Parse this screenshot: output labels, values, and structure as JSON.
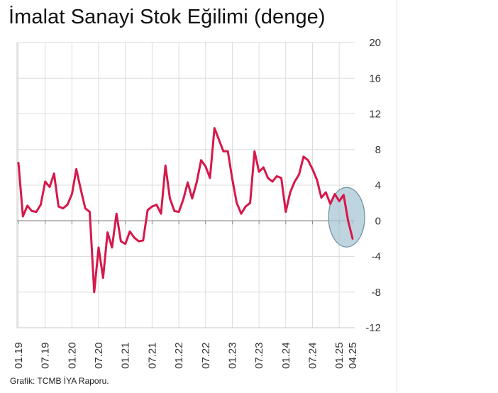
{
  "chart_data": {
    "type": "line",
    "title": "İmalat Sanayi Stok Eğilimi (denge)",
    "source": "Grafik: TCMB İYA Raporu.",
    "xlabel": "",
    "ylabel": "",
    "ylim": [
      -12,
      20
    ],
    "yticks": [
      20,
      16,
      12,
      8,
      4,
      0,
      -4,
      -8,
      -12
    ],
    "grid": true,
    "y_axis_side": "right",
    "xtick_labels": [
      "01.19",
      "07.19",
      "01.20",
      "07.20",
      "01.21",
      "07.21",
      "01.22",
      "07.22",
      "01.23",
      "07.23",
      "01.24",
      "07.24",
      "01.25",
      "04.25"
    ],
    "series": [
      {
        "color": "#d6184a",
        "x_start": "01.19",
        "x_end": "04.25",
        "values": [
          6.5,
          0.5,
          1.7,
          1.1,
          1.0,
          1.8,
          4.4,
          3.8,
          5.3,
          1.6,
          1.4,
          1.8,
          3.0,
          5.8,
          3.5,
          1.4,
          1.0,
          -8.0,
          -3.0,
          -6.4,
          -1.3,
          -3.0,
          0.8,
          -2.3,
          -2.6,
          -1.2,
          -1.9,
          -2.3,
          -2.2,
          1.2,
          1.6,
          1.8,
          0.8,
          6.2,
          2.5,
          1.1,
          1.0,
          2.4,
          4.3,
          2.5,
          4.3,
          6.8,
          6.1,
          4.8,
          10.4,
          9.1,
          7.8,
          7.8,
          4.7,
          2.0,
          0.8,
          1.6,
          2.0,
          7.8,
          5.5,
          6.0,
          4.8,
          4.4,
          5.0,
          4.8,
          1.0,
          3.2,
          4.4,
          5.2,
          7.2,
          6.8,
          5.8,
          4.6,
          2.6,
          3.2,
          1.9,
          3.0,
          2.2,
          2.9,
          0.0,
          -2.0
        ]
      }
    ],
    "annotation": {
      "type": "ellipse",
      "color": "#a8c6d4",
      "around": "01.25-04.25"
    }
  }
}
